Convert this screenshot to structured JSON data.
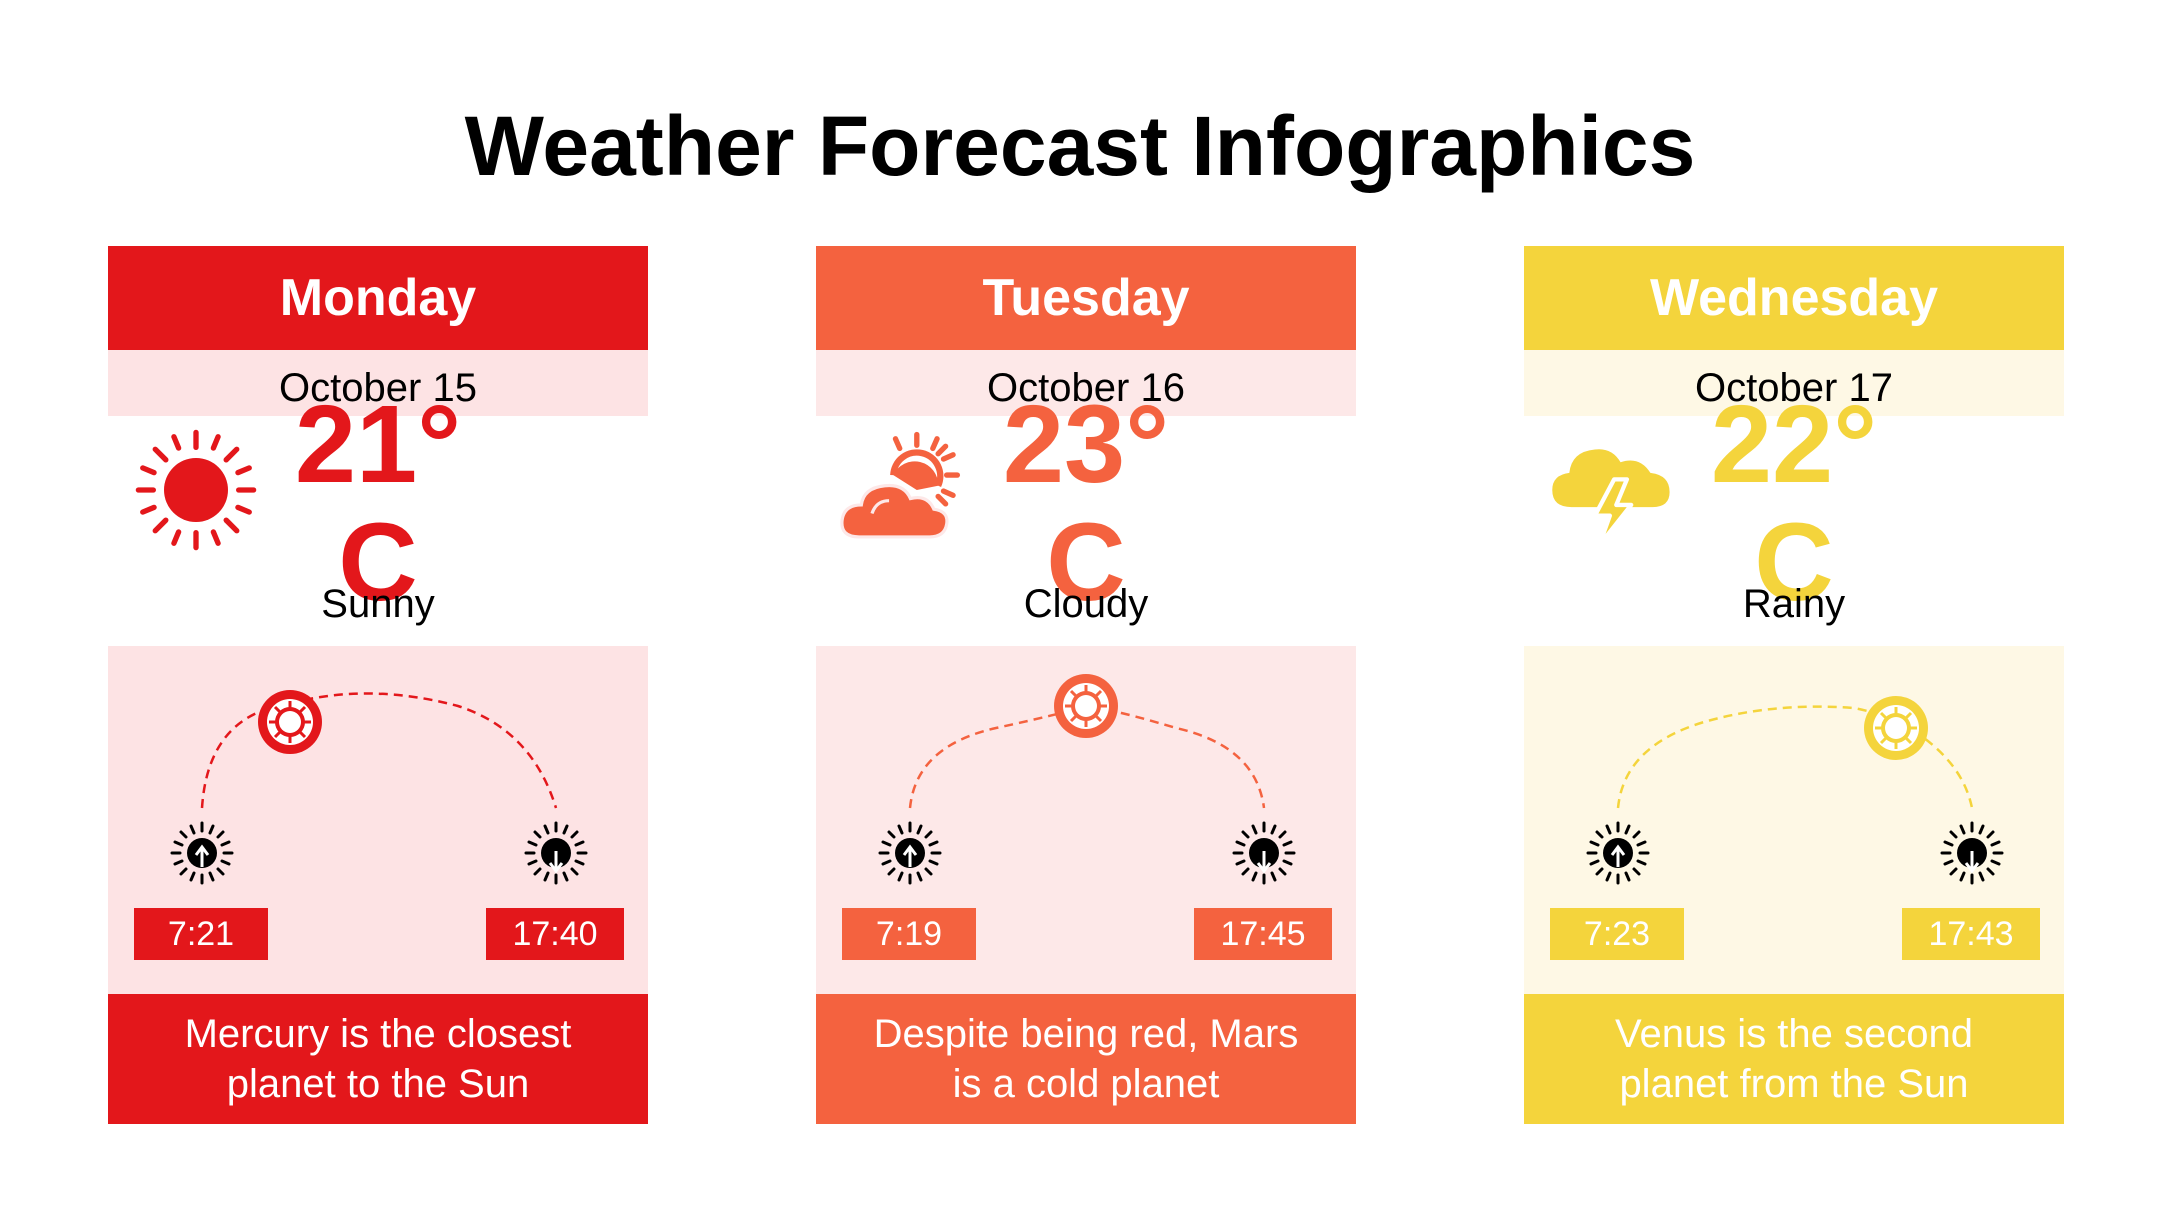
{
  "title": "Weather Forecast Infographics",
  "colors": {
    "red": "#e3171b",
    "orange": "#f4623f",
    "yellow": "#f4d43c"
  },
  "days": [
    {
      "day": "Monday",
      "date": "October 15",
      "temp_value": "21°",
      "temp_unit": "C",
      "condition": "Sunny",
      "icon": "sun-icon",
      "sunrise": "7:21",
      "sunset": "17:40",
      "description": "Mercury is the closest planet to the Sun"
    },
    {
      "day": "Tuesday",
      "date": "October 16",
      "temp_value": "23°",
      "temp_unit": "C",
      "condition": "Cloudy",
      "icon": "partly-cloudy-icon",
      "sunrise": "7:19",
      "sunset": "17:45",
      "description": "Despite being red, Mars is a cold planet"
    },
    {
      "day": "Wednesday",
      "date": "October 17",
      "temp_value": "22°",
      "temp_unit": "C",
      "condition": "Rainy",
      "icon": "thunderstorm-cloud-icon",
      "sunrise": "7:23",
      "sunset": "17:43",
      "description": "Venus is the second planet from the Sun"
    }
  ]
}
